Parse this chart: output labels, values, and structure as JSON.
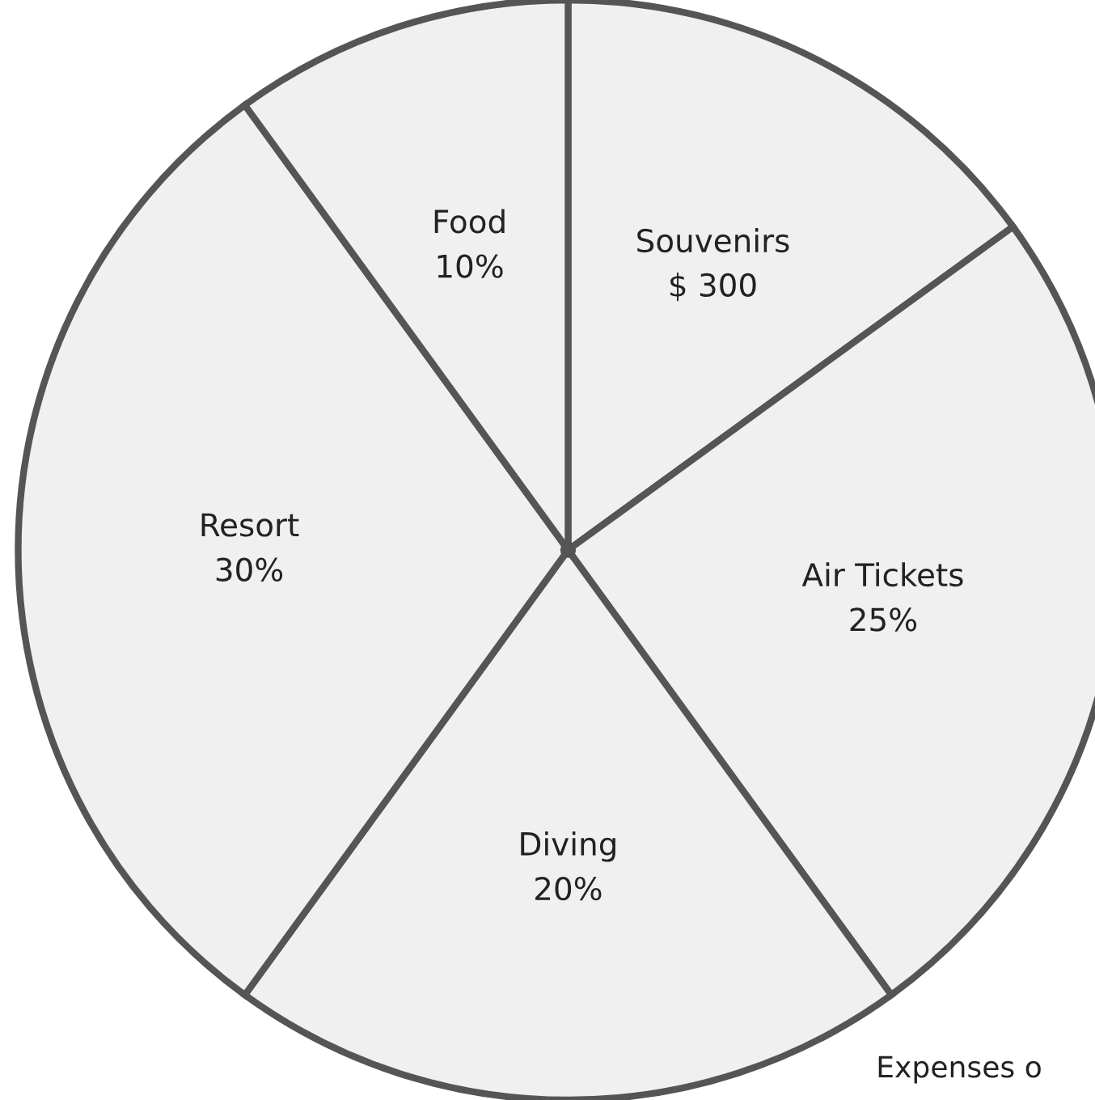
{
  "chart_data": {
    "type": "pie",
    "categories": [
      "Souvenirs",
      "Air Tickets",
      "Diving",
      "Resort",
      "Food"
    ],
    "values": [
      15,
      25,
      20,
      30,
      10
    ],
    "value_labels": [
      null,
      "25%",
      "20%",
      "30%",
      "10%"
    ],
    "colors": [
      "#f0f0f0",
      "#f0f0f0",
      "#f0f0f0",
      "#f0f0f0",
      "#f0f0f0"
    ],
    "annotations": [
      {
        "text": "$ 300",
        "x": "Souvenirs"
      },
      "Expenses o"
    ]
  }
}
